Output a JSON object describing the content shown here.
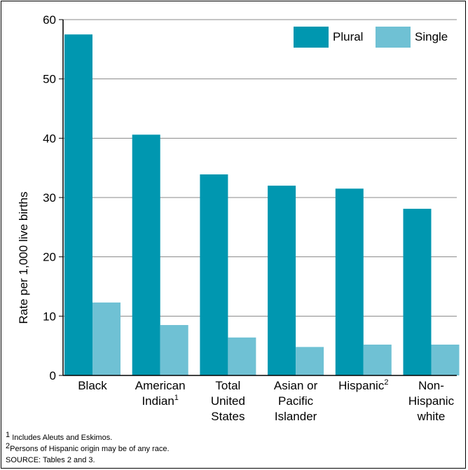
{
  "chart_data": {
    "type": "bar",
    "ylabel": "Rate per 1,000 live births",
    "xlabel": "",
    "ylim": [
      0,
      60
    ],
    "yticks": [
      0,
      10,
      20,
      30,
      40,
      50,
      60
    ],
    "grid": true,
    "legend_position": "top-right",
    "categories": [
      {
        "label": "Black",
        "sup": ""
      },
      {
        "label": "American\nIndian",
        "sup": "1"
      },
      {
        "label": "Total\nUnited\nStates",
        "sup": ""
      },
      {
        "label": "Asian or\nPacific\nIslander",
        "sup": ""
      },
      {
        "label": "Hispanic",
        "sup": "2"
      },
      {
        "label": "Non-\nHispanic\nwhite",
        "sup": ""
      }
    ],
    "series": [
      {
        "name": "Plural",
        "color": "#0097b0",
        "values": [
          57.5,
          40.6,
          33.9,
          32.0,
          31.5,
          28.1
        ]
      },
      {
        "name": "Single",
        "color": "#6fc1d4",
        "values": [
          12.3,
          8.5,
          6.4,
          4.8,
          5.2,
          5.2
        ]
      }
    ]
  },
  "footnotes": [
    {
      "sup": "1",
      "text": "Includes Aleuts and Eskimos."
    },
    {
      "sup": "2",
      "text": "Persons of Hispanic origin may be of any race."
    },
    {
      "sup": "",
      "text": "SOURCE: Tables 2 and 3."
    }
  ]
}
